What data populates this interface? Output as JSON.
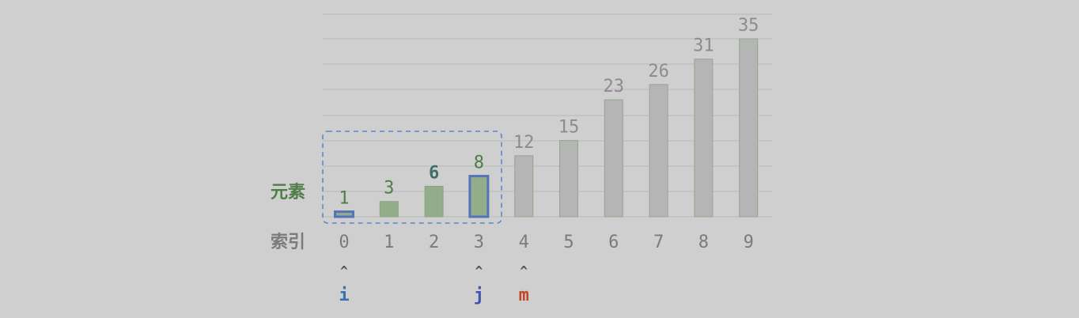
{
  "labels": {
    "elements_row": "元素",
    "index_row": "索引"
  },
  "colors": {
    "background": "#cfcfcf",
    "grid": "#b9b9b9",
    "bar_gray": "#b5b5b5",
    "bar_gray_stroke": "#8fa98a",
    "bar_green": "#93ad8a",
    "bar_green_stroke": "#8aa681",
    "highlight_stroke": "#5573b8",
    "highlight_fill": "#93ad8a",
    "value_green": "#4f7d47",
    "value_gray": "#8c8c8c",
    "value_target": "#3d6e6a",
    "index_gray": "#7b7b7b",
    "pointer_blue": "#3b6fb0",
    "pointer_j": "#4353b0",
    "pointer_m": "#c0452a",
    "bracket": "#5b87c9"
  },
  "chart_data": {
    "type": "bar",
    "categories": [
      "0",
      "1",
      "2",
      "3",
      "4",
      "5",
      "6",
      "7",
      "8",
      "9"
    ],
    "values": [
      1,
      3,
      6,
      8,
      12,
      15,
      23,
      26,
      31,
      35
    ],
    "value_labels": [
      "1",
      "3",
      "6",
      "8",
      "12",
      "15",
      "23",
      "26",
      "31",
      "35"
    ],
    "styles": [
      "highlight",
      "green",
      "green",
      "highlight",
      "gray",
      "gray",
      "gray",
      "gray",
      "gray",
      "gray"
    ],
    "label_styles": [
      "green",
      "green",
      "target",
      "green",
      "gray",
      "gray",
      "gray",
      "gray",
      "gray",
      "gray"
    ],
    "ylim": [
      0,
      35
    ],
    "grid": true,
    "bracket_range": [
      0,
      3
    ]
  },
  "pointers": [
    {
      "index": 0,
      "arrow": "^",
      "label": "i",
      "color_key": "pointer_blue"
    },
    {
      "index": 3,
      "arrow": "^",
      "label": "j",
      "color_key": "pointer_j"
    },
    {
      "index": 4,
      "arrow": "^",
      "label": "m",
      "color_key": "pointer_m"
    }
  ]
}
